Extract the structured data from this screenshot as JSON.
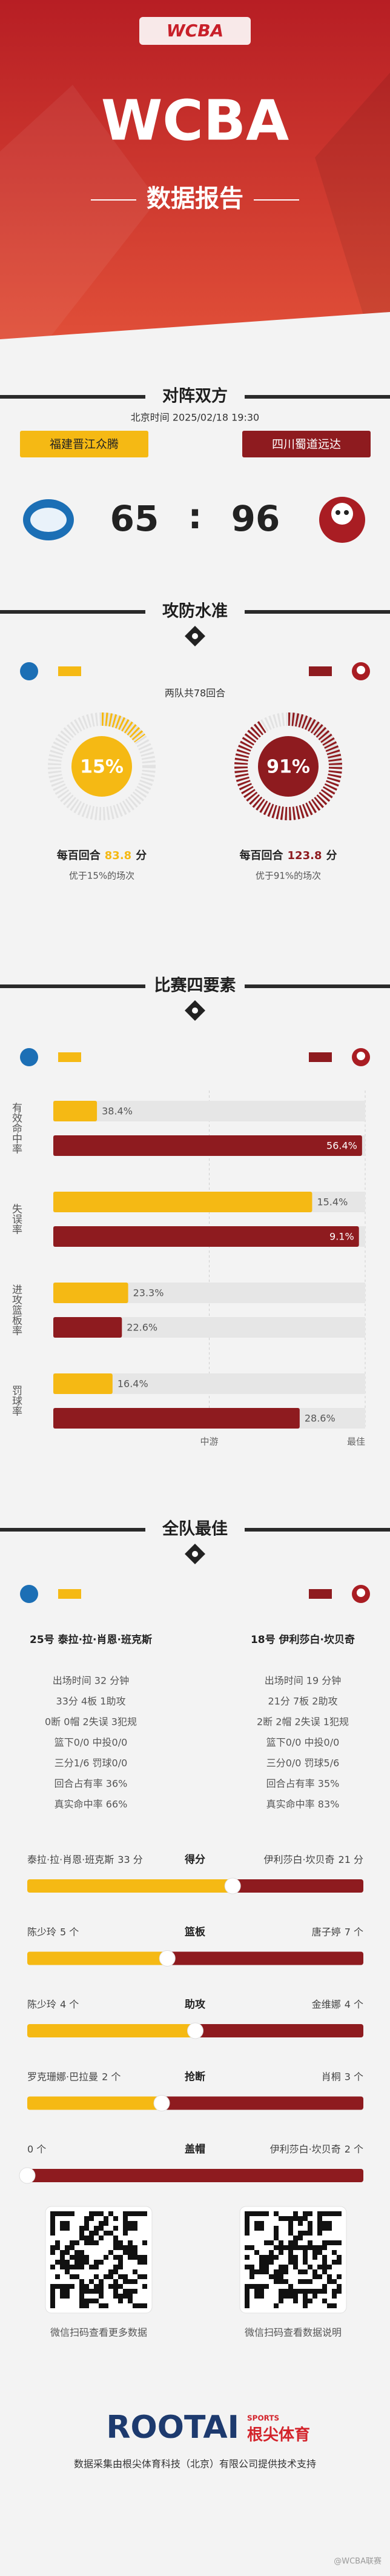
{
  "header": {
    "logo": "WCBA",
    "title": "WCBA",
    "subtitle": "数据报告"
  },
  "matchup": {
    "title": "对阵双方",
    "time": "北京时间 2025/02/18 19:30",
    "home": {
      "name": "福建晋江众腾",
      "score": 65,
      "color": "#f5b914"
    },
    "away": {
      "name": "四川蜀道远达",
      "score": 96,
      "color": "#8e1b1f"
    },
    "separator": ":"
  },
  "efficiency": {
    "title": "攻防水准",
    "possessions": "两队共78回合",
    "teams": [
      {
        "percentile": 15,
        "percentile_label": "15%",
        "prefix": "每百回合",
        "points": 83.8,
        "unit": "分",
        "note": "优于15%的场次"
      },
      {
        "percentile": 91,
        "percentile_label": "91%",
        "prefix": "每百回合",
        "points": 123.8,
        "unit": "分",
        "note": "优于91%的场次"
      }
    ]
  },
  "four_factors": {
    "title": "比赛四要素",
    "categories": [
      "有效命中率",
      "失误率",
      "进攻篮板率",
      "罚球率"
    ],
    "series": [
      {
        "values": [
          38.4,
          15.4,
          23.3,
          16.4
        ],
        "value_labels": [
          "38.4%",
          "15.4%",
          "23.3%",
          "16.4%"
        ],
        "ratings": [
          14,
          83,
          24,
          19
        ]
      },
      {
        "values": [
          56.4,
          9.1,
          22.6,
          28.6
        ],
        "value_labels": [
          "56.4%",
          "9.1%",
          "22.6%",
          "28.6%"
        ],
        "ratings": [
          99,
          98,
          22,
          79
        ]
      }
    ],
    "xlim": [
      0,
      100
    ],
    "xticks": [
      {
        "value": 50,
        "label": "中游"
      },
      {
        "value": 100,
        "label": "最佳"
      }
    ]
  },
  "leaders": {
    "title": "全队最佳",
    "players": [
      {
        "name": "25号 泰拉·拉·肖恩·班克斯",
        "lines": [
          "出场时间 32 分钟",
          "33分 4板 1助攻",
          "0断 0帽 2失误 3犯规",
          "篮下0/0 中投0/0",
          "三分1/6 罚球0/0",
          "回合占有率 36%",
          "真实命中率 66%"
        ]
      },
      {
        "name": "18号 伊利莎白·坎贝奇",
        "lines": [
          "出场时间 19 分钟",
          "21分 7板 2助攻",
          "2断 2帽 2失误 1犯规",
          "篮下0/0 中投0/0",
          "三分0/0 罚球5/6",
          "回合占有率 35%",
          "真实命中率 83%"
        ]
      }
    ],
    "categories": [
      {
        "label": "得分",
        "home": {
          "name": "泰拉·拉·肖恩·班克斯",
          "value": 33,
          "value_label": "33 分"
        },
        "away": {
          "name": "伊利莎白·坎贝奇",
          "value": 21,
          "value_label": "21 分"
        }
      },
      {
        "label": "篮板",
        "home": {
          "name": "陈少玲",
          "value": 5,
          "value_label": "5 个"
        },
        "away": {
          "name": "唐子婷",
          "value": 7,
          "value_label": "7 个"
        }
      },
      {
        "label": "助攻",
        "home": {
          "name": "陈少玲",
          "value": 4,
          "value_label": "4 个"
        },
        "away": {
          "name": "金维娜",
          "value": 4,
          "value_label": "4 个"
        }
      },
      {
        "label": "抢断",
        "home": {
          "name": "罗克珊娜·巴拉曼",
          "value": 2,
          "value_label": "2 个"
        },
        "away": {
          "name": "肖桐",
          "value": 3,
          "value_label": "3 个"
        }
      },
      {
        "label": "盖帽",
        "home": {
          "value": 0,
          "value_label": "0 个"
        },
        "away": {
          "name": "伊利莎白·坎贝奇",
          "value": 2,
          "value_label": "2 个"
        }
      }
    ]
  },
  "footer": {
    "qr_captions": [
      "微信扫码查看更多数据",
      "微信扫码查看数据说明"
    ],
    "brand": "ROOTAI",
    "brand_sub": "SPORTS",
    "brand_cn": "根尖体育",
    "credit": "数据采集由根尖体育科技（北京）有限公司提供技术支持",
    "watermark": "@WCBA联赛"
  }
}
